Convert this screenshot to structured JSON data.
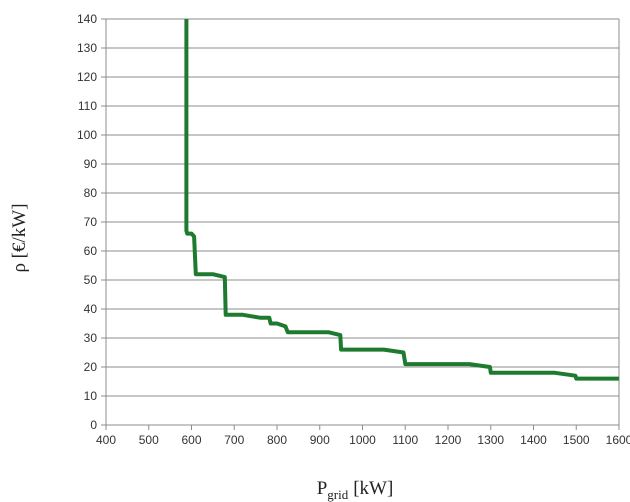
{
  "chart_data": {
    "type": "line",
    "title": "",
    "xlabel": "P",
    "xlabel_subscript": "grid",
    "xlabel_unit": "[kW]",
    "ylabel": "ρ [€/kW]",
    "xlim": [
      400,
      1600
    ],
    "ylim": [
      0,
      140
    ],
    "x_ticks": [
      "400",
      "500",
      "600",
      "700",
      "800",
      "900",
      "1000",
      "1100",
      "1200",
      "1300",
      "1400",
      "1500",
      "1600"
    ],
    "y_ticks": [
      "0",
      "10",
      "20",
      "30",
      "40",
      "50",
      "60",
      "70",
      "80",
      "90",
      "100",
      "110",
      "120",
      "130",
      "140"
    ],
    "grid": true,
    "legend": "none",
    "series_color": "#1e7a2e",
    "series": [
      {
        "x": [
          588,
          588,
          590,
          592,
          598,
          600,
          606,
          610,
          628,
          650,
          678,
          680,
          700,
          720,
          760,
          782,
          785,
          800,
          820,
          825,
          845,
          880,
          920,
          948,
          950,
          1000,
          1050,
          1096,
          1100,
          1150,
          1200,
          1250,
          1298,
          1300,
          1350,
          1400,
          1450,
          1498,
          1500,
          1550,
          1600
        ],
        "y": [
          140,
          67,
          66,
          66,
          66,
          66,
          65,
          52,
          52,
          52,
          51,
          38,
          38,
          38,
          37,
          37,
          35,
          35,
          34,
          32,
          32,
          32,
          32,
          31,
          26,
          26,
          26,
          25,
          21,
          21,
          21,
          21,
          20,
          18,
          18,
          18,
          18,
          17,
          16,
          16,
          16
        ]
      }
    ]
  }
}
